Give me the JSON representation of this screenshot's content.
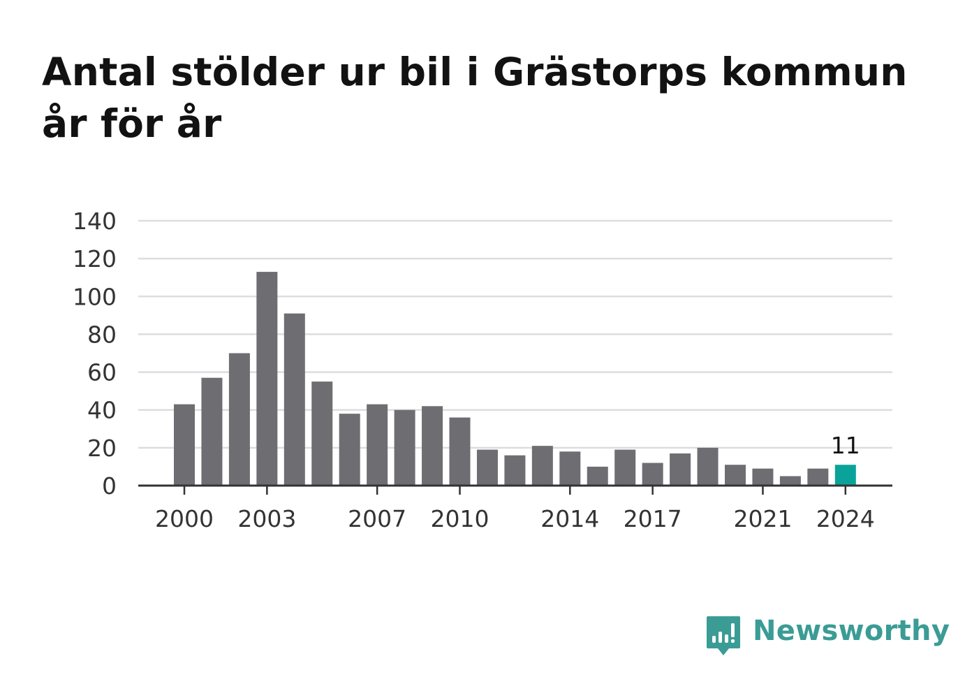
{
  "title": "Antal stölder ur bil i Grästorps kommun år för år",
  "brand": {
    "name": "Newsworthy",
    "color": "#3a9c95",
    "icon": "newsworthy-logo-icon"
  },
  "colors": {
    "bar": "#6e6d72",
    "highlight": "#0aa39a",
    "grid": "#dddddd",
    "axis": "#333333"
  },
  "chart_data": {
    "type": "bar",
    "title": "Antal stölder ur bil i Grästorps kommun år för år",
    "xlabel": "",
    "ylabel": "",
    "categories": [
      "2000",
      "2001",
      "2002",
      "2003",
      "2004",
      "2005",
      "2006",
      "2007",
      "2008",
      "2009",
      "2010",
      "2011",
      "2012",
      "2013",
      "2014",
      "2015",
      "2016",
      "2017",
      "2018",
      "2019",
      "2020",
      "2021",
      "2022",
      "2023",
      "2024"
    ],
    "values": [
      43,
      57,
      70,
      113,
      91,
      55,
      38,
      43,
      40,
      42,
      36,
      19,
      16,
      21,
      18,
      10,
      19,
      12,
      17,
      20,
      11,
      9,
      5,
      9,
      11
    ],
    "x_tick_labels": [
      "2000",
      "2003",
      "2007",
      "2010",
      "2014",
      "2017",
      "2021",
      "2024"
    ],
    "y_ticks": [
      0,
      20,
      40,
      60,
      80,
      100,
      120,
      140
    ],
    "ylim": [
      0,
      140
    ],
    "grid": true,
    "legend": "none",
    "highlight_category": "2024",
    "annotations": [
      {
        "category": "2024",
        "text": "11"
      }
    ]
  }
}
